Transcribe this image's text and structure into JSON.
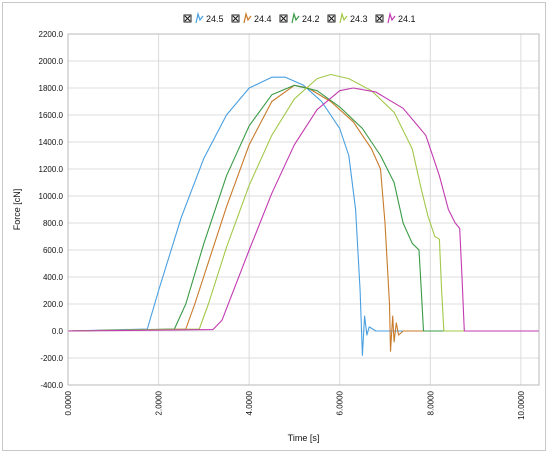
{
  "chart_data": {
    "type": "line",
    "title": "",
    "xlabel": "Time [s]",
    "ylabel": "Force [cN]",
    "xlim": [
      0,
      10.4
    ],
    "ylim": [
      -400,
      2200
    ],
    "x_ticks": [
      "0.0000",
      "2.0000",
      "4.0000",
      "6.0000",
      "8.0000",
      "10.0000"
    ],
    "x_tick_values": [
      0,
      2,
      4,
      6,
      8,
      10
    ],
    "y_ticks": [
      "-400.0",
      "-200.0",
      "0.0",
      "200.0",
      "400.0",
      "600.0",
      "800.0",
      "1000.0",
      "1200.0",
      "1400.0",
      "1600.0",
      "1800.0",
      "2000.0",
      "2200.0"
    ],
    "y_tick_values": [
      -400,
      -200,
      0,
      200,
      400,
      600,
      800,
      1000,
      1200,
      1400,
      1600,
      1800,
      2000,
      2200
    ],
    "grid": true,
    "legend_position": "top",
    "series": [
      {
        "name": "24.5",
        "color": "#4a9fe0",
        "points": [
          [
            0,
            0
          ],
          [
            1.75,
            15
          ],
          [
            2.0,
            300
          ],
          [
            2.5,
            840
          ],
          [
            3.0,
            1280
          ],
          [
            3.5,
            1600
          ],
          [
            4.0,
            1800
          ],
          [
            4.5,
            1880
          ],
          [
            4.8,
            1880
          ],
          [
            5.2,
            1820
          ],
          [
            5.6,
            1700
          ],
          [
            6.0,
            1500
          ],
          [
            6.2,
            1300
          ],
          [
            6.35,
            900
          ],
          [
            6.45,
            300
          ],
          [
            6.5,
            -180
          ],
          [
            6.55,
            110
          ],
          [
            6.6,
            -30
          ],
          [
            6.65,
            30
          ],
          [
            6.8,
            0
          ],
          [
            10.4,
            0
          ]
        ]
      },
      {
        "name": "24.4",
        "color": "#c87a2a",
        "points": [
          [
            0,
            0
          ],
          [
            2.6,
            15
          ],
          [
            2.8,
            200
          ],
          [
            3.5,
            920
          ],
          [
            4.0,
            1380
          ],
          [
            4.5,
            1700
          ],
          [
            5.0,
            1820
          ],
          [
            5.3,
            1800
          ],
          [
            5.8,
            1700
          ],
          [
            6.3,
            1550
          ],
          [
            6.7,
            1350
          ],
          [
            6.9,
            1200
          ],
          [
            7.0,
            800
          ],
          [
            7.1,
            200
          ],
          [
            7.12,
            -150
          ],
          [
            7.17,
            110
          ],
          [
            7.2,
            -80
          ],
          [
            7.25,
            60
          ],
          [
            7.3,
            -30
          ],
          [
            7.4,
            0
          ],
          [
            10.4,
            0
          ]
        ]
      },
      {
        "name": "24.2",
        "color": "#3a9a45",
        "points": [
          [
            0,
            0
          ],
          [
            2.35,
            15
          ],
          [
            2.6,
            200
          ],
          [
            3.0,
            650
          ],
          [
            3.5,
            1150
          ],
          [
            4.0,
            1520
          ],
          [
            4.5,
            1750
          ],
          [
            5.0,
            1820
          ],
          [
            5.5,
            1780
          ],
          [
            6.0,
            1660
          ],
          [
            6.5,
            1500
          ],
          [
            6.9,
            1300
          ],
          [
            7.2,
            1100
          ],
          [
            7.4,
            800
          ],
          [
            7.6,
            650
          ],
          [
            7.75,
            600
          ],
          [
            7.8,
            300
          ],
          [
            7.85,
            0
          ],
          [
            10.4,
            0
          ]
        ]
      },
      {
        "name": "24.3",
        "color": "#a3c84a",
        "points": [
          [
            0,
            0
          ],
          [
            2.9,
            15
          ],
          [
            3.1,
            200
          ],
          [
            3.5,
            620
          ],
          [
            4.0,
            1080
          ],
          [
            4.5,
            1450
          ],
          [
            5.0,
            1720
          ],
          [
            5.5,
            1870
          ],
          [
            5.8,
            1900
          ],
          [
            6.2,
            1870
          ],
          [
            6.7,
            1780
          ],
          [
            7.2,
            1620
          ],
          [
            7.6,
            1350
          ],
          [
            7.8,
            1050
          ],
          [
            7.95,
            850
          ],
          [
            8.1,
            700
          ],
          [
            8.2,
            680
          ],
          [
            8.25,
            300
          ],
          [
            8.3,
            0
          ],
          [
            10.4,
            0
          ]
        ]
      },
      {
        "name": "24.1",
        "color": "#c23ab0",
        "points": [
          [
            0,
            0
          ],
          [
            3.2,
            10
          ],
          [
            3.4,
            80
          ],
          [
            4.0,
            600
          ],
          [
            4.5,
            1020
          ],
          [
            5.0,
            1380
          ],
          [
            5.5,
            1640
          ],
          [
            6.0,
            1780
          ],
          [
            6.3,
            1800
          ],
          [
            6.8,
            1770
          ],
          [
            7.4,
            1650
          ],
          [
            7.9,
            1450
          ],
          [
            8.2,
            1150
          ],
          [
            8.4,
            900
          ],
          [
            8.55,
            800
          ],
          [
            8.65,
            760
          ],
          [
            8.7,
            400
          ],
          [
            8.75,
            0
          ],
          [
            10.4,
            0
          ]
        ]
      }
    ]
  }
}
